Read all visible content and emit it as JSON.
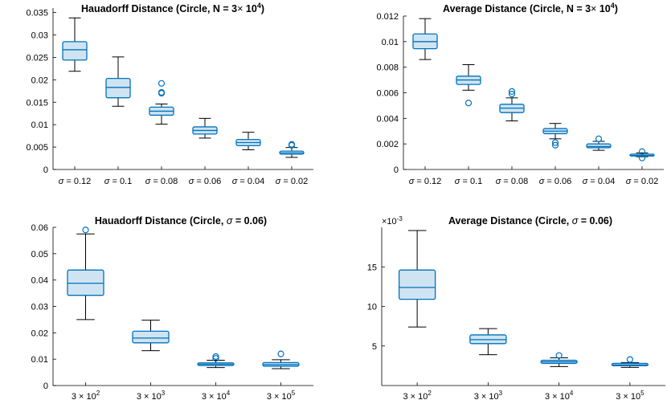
{
  "chart_data": [
    {
      "type": "box",
      "title_main": "Hauadorff Distance (Circle, N = 3",
      "title_times": "×",
      "title_base": "10",
      "title_exp": "4",
      "title_end": ")",
      "ylim": [
        0,
        0.036
      ],
      "yticks": [
        0,
        0.005,
        0.01,
        0.015,
        0.02,
        0.025,
        0.03,
        0.035
      ],
      "ytick_labels": [
        "0",
        "0.005",
        "0.01",
        "0.015",
        "0.02",
        "0.025",
        "0.03",
        "0.035"
      ],
      "categories": [
        "σ = 0.12",
        "σ = 0.1",
        "σ = 0.08",
        "σ = 0.06",
        "σ = 0.04",
        "σ = 0.02"
      ],
      "boxes": [
        {
          "whisker_low": 0.0219,
          "q1": 0.0244,
          "median": 0.0267,
          "q3": 0.0285,
          "whisker_high": 0.0338,
          "outliers": []
        },
        {
          "whisker_low": 0.0141,
          "q1": 0.016,
          "median": 0.0183,
          "q3": 0.0203,
          "whisker_high": 0.0251,
          "outliers": []
        },
        {
          "whisker_low": 0.0101,
          "q1": 0.0121,
          "median": 0.013,
          "q3": 0.0139,
          "whisker_high": 0.0146,
          "outliers": [
            0.0192,
            0.0172,
            0.017
          ]
        },
        {
          "whisker_low": 0.007,
          "q1": 0.0079,
          "median": 0.0087,
          "q3": 0.0095,
          "whisker_high": 0.0114,
          "outliers": []
        },
        {
          "whisker_low": 0.0044,
          "q1": 0.0053,
          "median": 0.006,
          "q3": 0.0067,
          "whisker_high": 0.0083,
          "outliers": []
        },
        {
          "whisker_low": 0.0027,
          "q1": 0.0034,
          "median": 0.0037,
          "q3": 0.0041,
          "whisker_high": 0.0049,
          "outliers": [
            0.0056,
            0.0054
          ]
        }
      ]
    },
    {
      "type": "box",
      "title_main": "Average Distance (Circle, N = 3",
      "title_times": "×",
      "title_base": "10",
      "title_exp": "4",
      "title_end": ")",
      "ylim": [
        0,
        0.012
      ],
      "yticks": [
        0,
        0.002,
        0.004,
        0.006,
        0.008,
        0.01,
        0.012
      ],
      "ytick_labels": [
        "0",
        "0.002",
        "0.004",
        "0.006",
        "0.008",
        "0.01",
        "0.012"
      ],
      "categories": [
        "σ = 0.12",
        "σ = 0.1",
        "σ = 0.08",
        "σ = 0.06",
        "σ = 0.04",
        "σ = 0.02"
      ],
      "boxes": [
        {
          "whisker_low": 0.0086,
          "q1": 0.00945,
          "median": 0.01,
          "q3": 0.0106,
          "whisker_high": 0.0118,
          "outliers": []
        },
        {
          "whisker_low": 0.0062,
          "q1": 0.00665,
          "median": 0.007,
          "q3": 0.0073,
          "whisker_high": 0.0082,
          "outliers": [
            0.0052
          ]
        },
        {
          "whisker_low": 0.0038,
          "q1": 0.00445,
          "median": 0.0048,
          "q3": 0.0051,
          "whisker_high": 0.0056,
          "outliers": [
            0.0061,
            0.0059
          ]
        },
        {
          "whisker_low": 0.0024,
          "q1": 0.0028,
          "median": 0.003,
          "q3": 0.0032,
          "whisker_high": 0.0036,
          "outliers": [
            0.0021,
            0.0019
          ]
        },
        {
          "whisker_low": 0.0015,
          "q1": 0.0017,
          "median": 0.0018,
          "q3": 0.002,
          "whisker_high": 0.0022,
          "outliers": [
            0.0024
          ]
        },
        {
          "whisker_low": 0.001,
          "q1": 0.00105,
          "median": 0.0011,
          "q3": 0.0012,
          "whisker_high": 0.0013,
          "outliers": [
            0.0014,
            0.0009
          ]
        }
      ]
    },
    {
      "type": "box",
      "title_main": "Hauadorff Distance (Circle, ",
      "title_sigma": "σ",
      "title_end": " = 0.06)",
      "ylim": [
        0,
        0.06
      ],
      "yticks": [
        0,
        0.01,
        0.02,
        0.03,
        0.04,
        0.05,
        0.06
      ],
      "ytick_labels": [
        "0",
        "0.01",
        "0.02",
        "0.03",
        "0.04",
        "0.05",
        "0.06"
      ],
      "categories_sup": [
        {
          "base": "3 × 10",
          "exp": "2"
        },
        {
          "base": "3 × 10",
          "exp": "3"
        },
        {
          "base": "3 × 10",
          "exp": "4"
        },
        {
          "base": "3 × 10",
          "exp": "5"
        }
      ],
      "boxes": [
        {
          "whisker_low": 0.025,
          "q1": 0.0342,
          "median": 0.0388,
          "q3": 0.0438,
          "whisker_high": 0.0575,
          "outliers": [
            0.059
          ]
        },
        {
          "whisker_low": 0.0132,
          "q1": 0.0162,
          "median": 0.018,
          "q3": 0.0206,
          "whisker_high": 0.0248,
          "outliers": []
        },
        {
          "whisker_low": 0.0068,
          "q1": 0.0076,
          "median": 0.0081,
          "q3": 0.0086,
          "whisker_high": 0.0096,
          "outliers": [
            0.011,
            0.0103
          ]
        },
        {
          "whisker_low": 0.0064,
          "q1": 0.0073,
          "median": 0.0079,
          "q3": 0.0087,
          "whisker_high": 0.0098,
          "outliers": [
            0.012
          ]
        }
      ]
    },
    {
      "type": "box",
      "title_main": "Average Distance (Circle, ",
      "title_sigma": "σ",
      "title_end": " = 0.06)",
      "ylim": [
        0,
        20
      ],
      "yticks": [
        5,
        10,
        15
      ],
      "ytick_labels": [
        "5",
        "10",
        "15"
      ],
      "exponent_base": "×10",
      "exponent_power": "-3",
      "categories_sup": [
        {
          "base": "3 × 10",
          "exp": "2"
        },
        {
          "base": "3 × 10",
          "exp": "3"
        },
        {
          "base": "3 × 10",
          "exp": "4"
        },
        {
          "base": "3 × 10",
          "exp": "5"
        }
      ],
      "boxes": [
        {
          "whisker_low": 7.4,
          "q1": 10.9,
          "median": 12.4,
          "q3": 14.6,
          "whisker_high": 19.6,
          "outliers": []
        },
        {
          "whisker_low": 3.9,
          "q1": 5.3,
          "median": 5.8,
          "q3": 6.4,
          "whisker_high": 7.2,
          "outliers": []
        },
        {
          "whisker_low": 2.4,
          "q1": 2.8,
          "median": 3.0,
          "q3": 3.2,
          "whisker_high": 3.5,
          "outliers": [
            3.8
          ]
        },
        {
          "whisker_low": 2.3,
          "q1": 2.5,
          "median": 2.6,
          "q3": 2.8,
          "whisker_high": 2.9,
          "outliers": [
            3.3
          ]
        }
      ]
    }
  ]
}
